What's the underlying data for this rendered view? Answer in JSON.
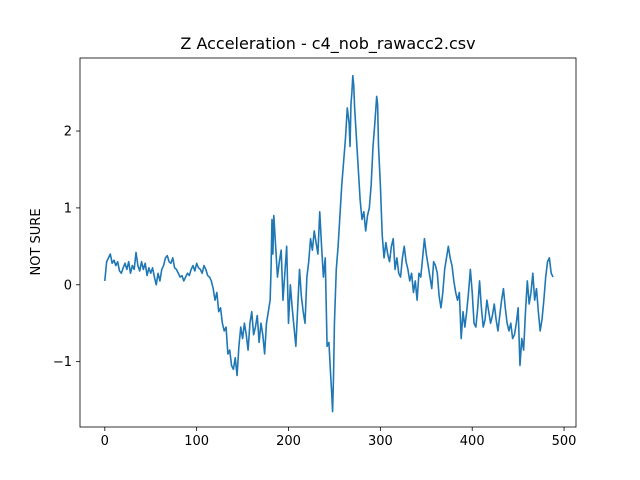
{
  "chart_data": {
    "type": "line",
    "title": "Z Acceleration - c4_nob_rawacc2.csv",
    "xlabel": "",
    "ylabel": "NOT SURE",
    "xlim": [
      -27,
      513
    ],
    "ylim": [
      -1.85,
      2.95
    ],
    "xticks": [
      0,
      100,
      200,
      300,
      400,
      500
    ],
    "yticks": [
      -1,
      0,
      1,
      2
    ],
    "xtick_labels": [
      "0",
      "100",
      "200",
      "300",
      "400",
      "500"
    ],
    "ytick_labels": [
      "−1",
      "0",
      "1",
      "2"
    ],
    "grid": false,
    "series": [
      {
        "color": "#1f77b4",
        "x": [
          0,
          2,
          4,
          6,
          8,
          10,
          12,
          14,
          16,
          18,
          20,
          22,
          24,
          26,
          28,
          30,
          32,
          34,
          36,
          38,
          40,
          42,
          44,
          46,
          48,
          50,
          52,
          54,
          56,
          58,
          60,
          62,
          64,
          66,
          68,
          70,
          72,
          74,
          76,
          78,
          80,
          82,
          84,
          86,
          88,
          90,
          92,
          94,
          96,
          98,
          100,
          102,
          104,
          106,
          108,
          110,
          112,
          114,
          116,
          118,
          120,
          122,
          124,
          126,
          128,
          130,
          132,
          134,
          136,
          138,
          140,
          142,
          144,
          146,
          148,
          150,
          152,
          154,
          156,
          158,
          160,
          162,
          164,
          166,
          168,
          170,
          172,
          174,
          176,
          178,
          180,
          181,
          182,
          183,
          184,
          186,
          188,
          190,
          192,
          194,
          196,
          198,
          200,
          202,
          204,
          206,
          208,
          210,
          212,
          214,
          216,
          218,
          220,
          222,
          224,
          226,
          228,
          230,
          232,
          234,
          236,
          238,
          240,
          242,
          244,
          246,
          247,
          248,
          249,
          250,
          252,
          254,
          256,
          258,
          260,
          262,
          264,
          266,
          267,
          268,
          269,
          270,
          271,
          272,
          274,
          276,
          278,
          280,
          282,
          284,
          286,
          288,
          290,
          292,
          294,
          296,
          297,
          298,
          300,
          302,
          304,
          306,
          308,
          310,
          312,
          314,
          316,
          318,
          320,
          322,
          324,
          326,
          328,
          330,
          332,
          334,
          336,
          338,
          340,
          342,
          344,
          346,
          348,
          350,
          352,
          354,
          356,
          358,
          360,
          362,
          364,
          366,
          368,
          370,
          372,
          374,
          376,
          378,
          380,
          382,
          384,
          386,
          388,
          390,
          392,
          394,
          396,
          398,
          400,
          402,
          404,
          406,
          408,
          410,
          412,
          414,
          416,
          418,
          420,
          422,
          424,
          426,
          428,
          430,
          432,
          434,
          436,
          438,
          440,
          442,
          444,
          446,
          448,
          450,
          452,
          454,
          456,
          458,
          460,
          462,
          464,
          466,
          468,
          470,
          472,
          474,
          476,
          478,
          480,
          482,
          484,
          486,
          488
        ],
        "y": [
          0.05,
          0.3,
          0.35,
          0.4,
          0.28,
          0.32,
          0.25,
          0.3,
          0.18,
          0.15,
          0.22,
          0.28,
          0.2,
          0.3,
          0.15,
          0.25,
          0.2,
          0.42,
          0.25,
          0.18,
          0.3,
          0.2,
          0.28,
          0.12,
          0.22,
          0.15,
          0.22,
          0.1,
          0.0,
          0.15,
          0.05,
          0.2,
          0.25,
          0.35,
          0.38,
          0.3,
          0.28,
          0.35,
          0.22,
          0.2,
          0.15,
          0.1,
          0.12,
          0.05,
          0.1,
          0.15,
          0.12,
          0.2,
          0.25,
          0.18,
          0.28,
          0.22,
          0.2,
          0.15,
          0.25,
          0.2,
          0.12,
          0.1,
          0.05,
          -0.05,
          -0.2,
          -0.1,
          -0.35,
          -0.3,
          -0.5,
          -0.6,
          -0.55,
          -0.9,
          -0.85,
          -1.05,
          -1.1,
          -0.95,
          -1.18,
          -0.8,
          -0.55,
          -0.7,
          -0.5,
          -0.65,
          -0.85,
          -0.5,
          -0.35,
          -0.65,
          -0.55,
          -0.4,
          -0.75,
          -0.5,
          -0.65,
          -0.9,
          -0.5,
          -0.35,
          -0.2,
          0.2,
          0.85,
          0.4,
          0.9,
          0.5,
          0.1,
          0.3,
          0.45,
          -0.2,
          0.15,
          0.5,
          -0.5,
          0.0,
          -0.3,
          -0.55,
          -0.8,
          -0.3,
          0.2,
          -0.15,
          -0.35,
          -0.5,
          0.1,
          0.3,
          0.6,
          0.45,
          0.7,
          0.55,
          0.4,
          0.95,
          0.5,
          0.1,
          0.35,
          -0.8,
          -0.75,
          -1.2,
          -1.4,
          -1.65,
          -1.2,
          -0.5,
          0.2,
          0.5,
          0.9,
          1.3,
          1.6,
          1.9,
          2.3,
          2.1,
          1.8,
          2.35,
          2.5,
          2.72,
          2.6,
          2.3,
          1.9,
          1.5,
          1.1,
          0.85,
          0.95,
          0.7,
          0.9,
          1.0,
          1.3,
          1.8,
          2.1,
          2.45,
          2.35,
          1.8,
          1.3,
          0.65,
          0.35,
          0.55,
          0.4,
          0.3,
          0.5,
          0.6,
          0.2,
          0.35,
          0.15,
          0.1,
          0.35,
          0.5,
          0.3,
          0.2,
          0.05,
          0.15,
          -0.1,
          0.05,
          -0.2,
          0.15,
          0.1,
          0.35,
          0.6,
          0.4,
          0.25,
          0.1,
          -0.05,
          0.3,
          0.25,
          0.15,
          -0.15,
          -0.3,
          -0.1,
          0.2,
          0.35,
          0.5,
          0.35,
          0.25,
          0.05,
          -0.1,
          -0.2,
          -0.1,
          -0.7,
          -0.35,
          -0.55,
          -0.35,
          -0.1,
          0.2,
          -0.1,
          -0.5,
          -0.55,
          -0.3,
          0.05,
          -0.3,
          -0.55,
          -0.45,
          -0.2,
          -0.35,
          -0.5,
          -0.4,
          -0.25,
          -0.45,
          -0.6,
          -0.4,
          -0.2,
          -0.05,
          -0.3,
          -0.5,
          -0.6,
          -0.5,
          -0.7,
          -0.65,
          -0.5,
          -0.3,
          -1.05,
          -0.7,
          -0.85,
          -0.35,
          0.05,
          -0.25,
          -0.1,
          0.15,
          -0.2,
          -0.05,
          -0.35,
          -0.6,
          -0.45,
          -0.2,
          0.1,
          0.3,
          0.35,
          0.15,
          0.1
        ]
      }
    ]
  }
}
